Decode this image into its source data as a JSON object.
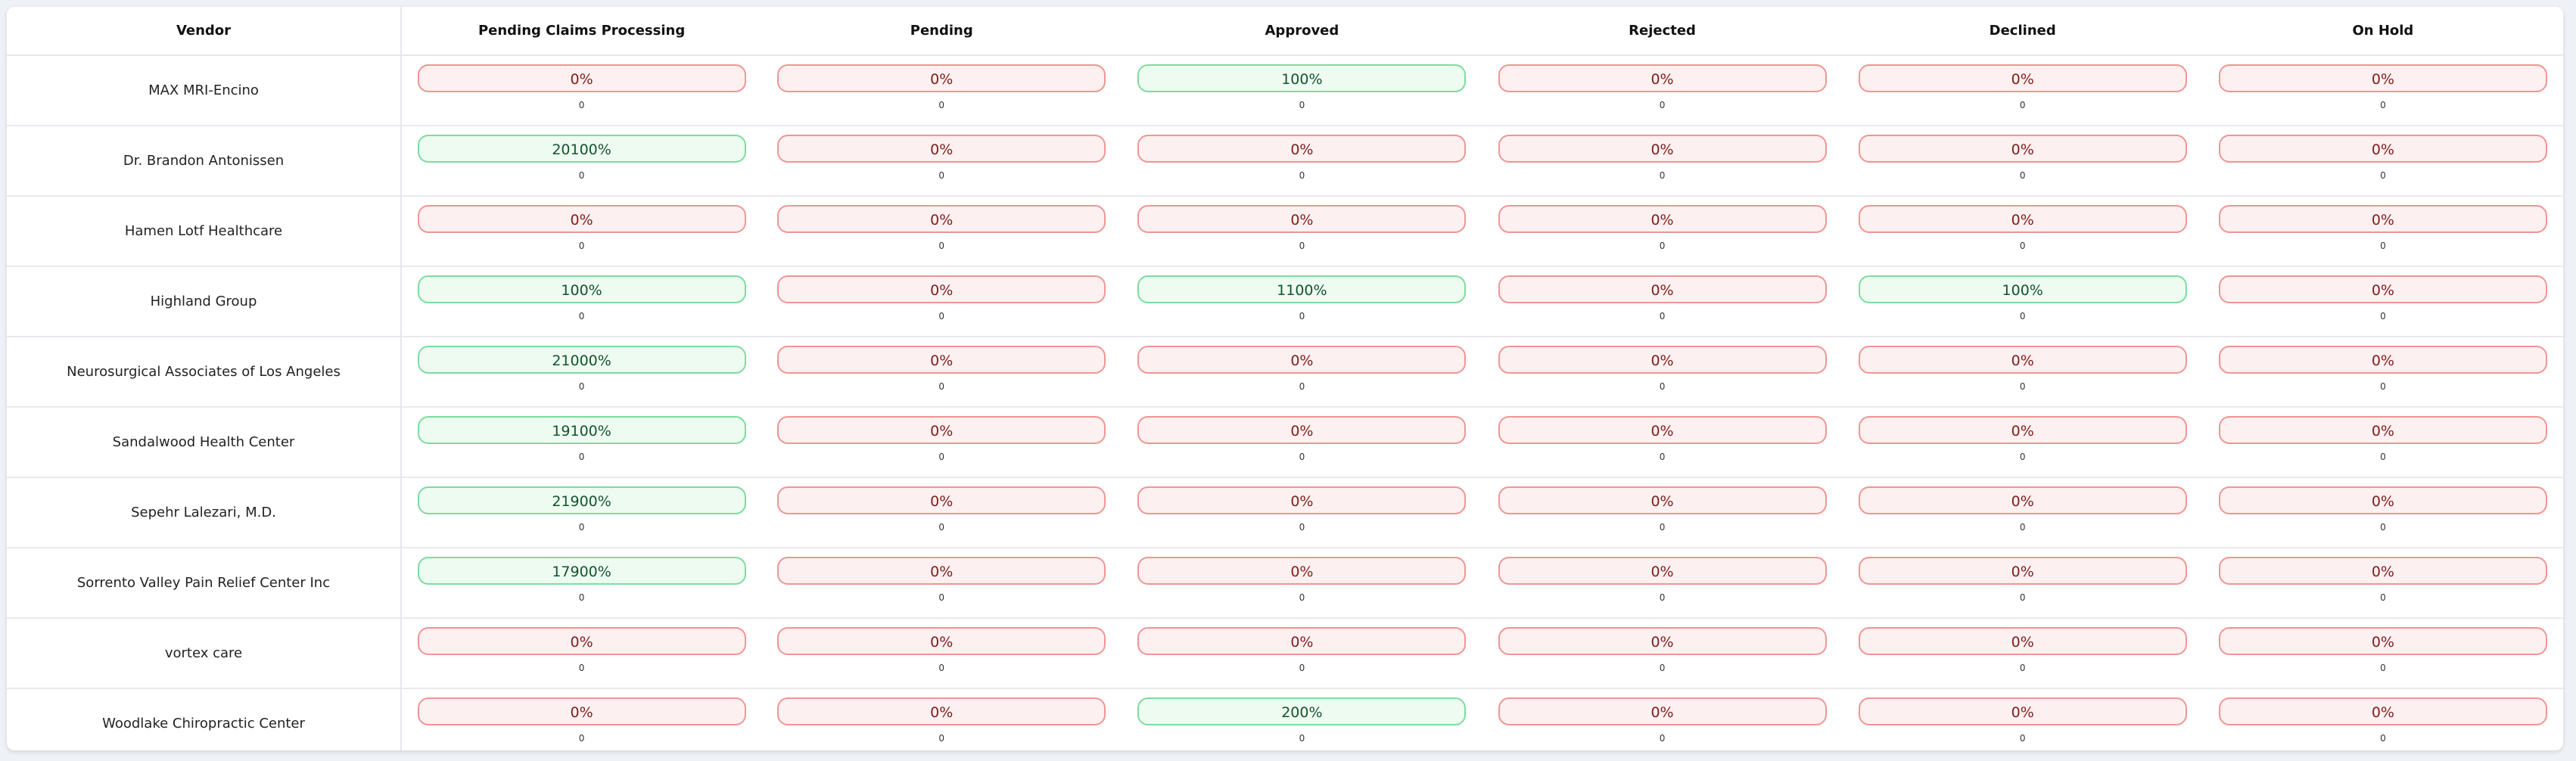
{
  "table": {
    "headers": [
      "Vendor",
      "Pending Claims Processing",
      "Pending",
      "Approved",
      "Rejected",
      "Declined",
      "On Hold"
    ],
    "rows": [
      {
        "vendor": "MAX MRI-Encino",
        "cells": [
          {
            "percent": "0%",
            "count": "0"
          },
          {
            "percent": "0%",
            "count": "0"
          },
          {
            "percent": "100%",
            "count": "0"
          },
          {
            "percent": "0%",
            "count": "0"
          },
          {
            "percent": "0%",
            "count": "0"
          },
          {
            "percent": "0%",
            "count": "0"
          }
        ]
      },
      {
        "vendor": "Dr. Brandon Antonissen",
        "cells": [
          {
            "percent": "20100%",
            "count": "0"
          },
          {
            "percent": "0%",
            "count": "0"
          },
          {
            "percent": "0%",
            "count": "0"
          },
          {
            "percent": "0%",
            "count": "0"
          },
          {
            "percent": "0%",
            "count": "0"
          },
          {
            "percent": "0%",
            "count": "0"
          }
        ]
      },
      {
        "vendor": "Hamen Lotf Healthcare",
        "cells": [
          {
            "percent": "0%",
            "count": "0"
          },
          {
            "percent": "0%",
            "count": "0"
          },
          {
            "percent": "0%",
            "count": "0"
          },
          {
            "percent": "0%",
            "count": "0"
          },
          {
            "percent": "0%",
            "count": "0"
          },
          {
            "percent": "0%",
            "count": "0"
          }
        ]
      },
      {
        "vendor": "Highland Group",
        "cells": [
          {
            "percent": "100%",
            "count": "0"
          },
          {
            "percent": "0%",
            "count": "0"
          },
          {
            "percent": "1100%",
            "count": "0"
          },
          {
            "percent": "0%",
            "count": "0"
          },
          {
            "percent": "100%",
            "count": "0"
          },
          {
            "percent": "0%",
            "count": "0"
          }
        ]
      },
      {
        "vendor": "Neurosurgical Associates of Los Angeles",
        "cells": [
          {
            "percent": "21000%",
            "count": "0"
          },
          {
            "percent": "0%",
            "count": "0"
          },
          {
            "percent": "0%",
            "count": "0"
          },
          {
            "percent": "0%",
            "count": "0"
          },
          {
            "percent": "0%",
            "count": "0"
          },
          {
            "percent": "0%",
            "count": "0"
          }
        ]
      },
      {
        "vendor": "Sandalwood Health Center",
        "cells": [
          {
            "percent": "19100%",
            "count": "0"
          },
          {
            "percent": "0%",
            "count": "0"
          },
          {
            "percent": "0%",
            "count": "0"
          },
          {
            "percent": "0%",
            "count": "0"
          },
          {
            "percent": "0%",
            "count": "0"
          },
          {
            "percent": "0%",
            "count": "0"
          }
        ]
      },
      {
        "vendor": "Sepehr Lalezari, M.D.",
        "cells": [
          {
            "percent": "21900%",
            "count": "0"
          },
          {
            "percent": "0%",
            "count": "0"
          },
          {
            "percent": "0%",
            "count": "0"
          },
          {
            "percent": "0%",
            "count": "0"
          },
          {
            "percent": "0%",
            "count": "0"
          },
          {
            "percent": "0%",
            "count": "0"
          }
        ]
      },
      {
        "vendor": "Sorrento Valley Pain Relief Center Inc",
        "cells": [
          {
            "percent": "17900%",
            "count": "0"
          },
          {
            "percent": "0%",
            "count": "0"
          },
          {
            "percent": "0%",
            "count": "0"
          },
          {
            "percent": "0%",
            "count": "0"
          },
          {
            "percent": "0%",
            "count": "0"
          },
          {
            "percent": "0%",
            "count": "0"
          }
        ]
      },
      {
        "vendor": "vortex care",
        "cells": [
          {
            "percent": "0%",
            "count": "0"
          },
          {
            "percent": "0%",
            "count": "0"
          },
          {
            "percent": "0%",
            "count": "0"
          },
          {
            "percent": "0%",
            "count": "0"
          },
          {
            "percent": "0%",
            "count": "0"
          },
          {
            "percent": "0%",
            "count": "0"
          }
        ]
      },
      {
        "vendor": "Woodlake Chiropractic Center",
        "cells": [
          {
            "percent": "0%",
            "count": "0"
          },
          {
            "percent": "0%",
            "count": "0"
          },
          {
            "percent": "200%",
            "count": "0"
          },
          {
            "percent": "0%",
            "count": "0"
          },
          {
            "percent": "0%",
            "count": "0"
          },
          {
            "percent": "0%",
            "count": "0"
          }
        ]
      }
    ]
  }
}
